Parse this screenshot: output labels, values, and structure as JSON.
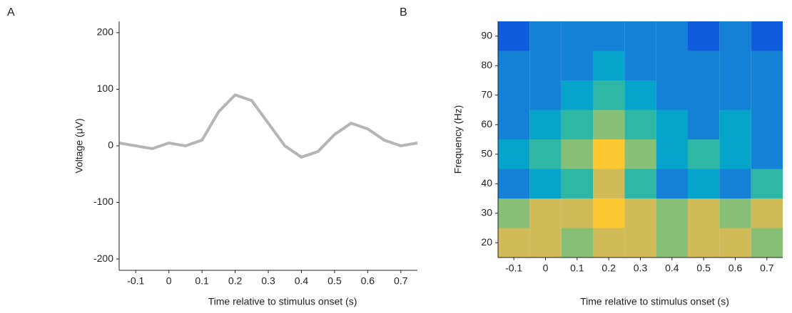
{
  "chart_data": [
    {
      "type": "line",
      "panel": "A",
      "xlabel": "Time relative to stimulus onset (s)",
      "ylabel": "Voltage (μV)",
      "x": [
        -0.15,
        -0.1,
        -0.05,
        0,
        0.05,
        0.1,
        0.15,
        0.2,
        0.25,
        0.3,
        0.35,
        0.4,
        0.45,
        0.5,
        0.55,
        0.6,
        0.65,
        0.7,
        0.75
      ],
      "values": [
        5,
        0,
        -5,
        5,
        0,
        10,
        60,
        90,
        80,
        40,
        0,
        -20,
        -10,
        20,
        40,
        30,
        10,
        0,
        5
      ],
      "color": "#b5b5b5",
      "xlim": [
        -0.15,
        0.75
      ],
      "xticks": [
        -0.1,
        0,
        0.1,
        0.2,
        0.3,
        0.4,
        0.5,
        0.6,
        0.7
      ],
      "ylim": [
        -220,
        220
      ],
      "yticks": [
        -200,
        -100,
        0,
        100,
        200
      ]
    },
    {
      "type": "heatmap",
      "panel": "B",
      "xlabel": "Time relative to stimulus onset (s)",
      "ylabel": "Frequency (Hz)",
      "x": [
        -0.1,
        0,
        0.1,
        0.2,
        0.3,
        0.4,
        0.5,
        0.6,
        0.7
      ],
      "y": [
        20,
        30,
        40,
        50,
        60,
        70,
        80,
        90
      ],
      "z": [
        [
          0.7,
          0.8,
          0.6,
          0.7,
          0.8,
          0.6,
          0.7,
          0.8,
          0.6
        ],
        [
          0.6,
          0.7,
          0.8,
          0.9,
          0.7,
          0.6,
          0.7,
          0.6,
          0.8
        ],
        [
          0.3,
          0.4,
          0.5,
          0.7,
          0.5,
          0.3,
          0.4,
          0.3,
          0.5
        ],
        [
          0.4,
          0.5,
          0.6,
          0.9,
          0.6,
          0.4,
          0.5,
          0.4,
          0.3
        ],
        [
          0.3,
          0.4,
          0.5,
          0.6,
          0.5,
          0.4,
          0.3,
          0.4,
          0.3
        ],
        [
          0.2,
          0.3,
          0.4,
          0.5,
          0.4,
          0.3,
          0.3,
          0.2,
          0.3
        ],
        [
          0.2,
          0.2,
          0.3,
          0.4,
          0.3,
          0.2,
          0.3,
          0.2,
          0.2
        ],
        [
          0.1,
          0.2,
          0.2,
          0.3,
          0.2,
          0.2,
          0.1,
          0.2,
          0.1
        ]
      ],
      "colormap": [
        "#352a87",
        "#0f5cdd",
        "#1481d6",
        "#06a4ca",
        "#2eb7a4",
        "#87bf77",
        "#d1bb59",
        "#fec832",
        "#f9fb0e"
      ],
      "xlim": [
        -0.15,
        0.75
      ],
      "xticks": [
        -0.1,
        0,
        0.1,
        0.2,
        0.3,
        0.4,
        0.5,
        0.6,
        0.7
      ],
      "ylim": [
        15,
        95
      ],
      "yticks": [
        20,
        30,
        40,
        50,
        60,
        70,
        80,
        90
      ]
    }
  ]
}
